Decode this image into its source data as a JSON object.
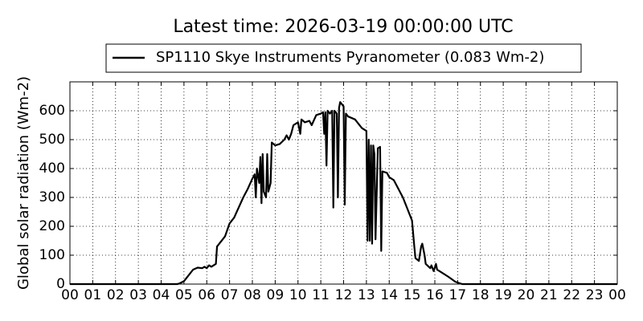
{
  "chart_data": {
    "type": "line",
    "title": "Latest time: 2026-03-19 00:00:00 UTC",
    "ylabel": "Global solar radiation (Wm-2)",
    "xlim": [
      0,
      24
    ],
    "ylim": [
      0,
      700
    ],
    "xticks": [
      {
        "value": 0,
        "label": "00"
      },
      {
        "value": 1,
        "label": "01"
      },
      {
        "value": 2,
        "label": "02"
      },
      {
        "value": 3,
        "label": "03"
      },
      {
        "value": 4,
        "label": "04"
      },
      {
        "value": 5,
        "label": "05"
      },
      {
        "value": 6,
        "label": "06"
      },
      {
        "value": 7,
        "label": "07"
      },
      {
        "value": 8,
        "label": "08"
      },
      {
        "value": 9,
        "label": "09"
      },
      {
        "value": 10,
        "label": "10"
      },
      {
        "value": 11,
        "label": "11"
      },
      {
        "value": 12,
        "label": "12"
      },
      {
        "value": 13,
        "label": "13"
      },
      {
        "value": 14,
        "label": "14"
      },
      {
        "value": 15,
        "label": "15"
      },
      {
        "value": 16,
        "label": "16"
      },
      {
        "value": 17,
        "label": "17"
      },
      {
        "value": 18,
        "label": "18"
      },
      {
        "value": 19,
        "label": "19"
      },
      {
        "value": 20,
        "label": "20"
      },
      {
        "value": 21,
        "label": "21"
      },
      {
        "value": 22,
        "label": "22"
      },
      {
        "value": 23,
        "label": "23"
      },
      {
        "value": 24,
        "label": "00"
      }
    ],
    "yticks": [
      0,
      100,
      200,
      300,
      400,
      500,
      600
    ],
    "grid": true,
    "series": [
      {
        "name": "SP1110 Skye Instruments Pyranometer (0.083 Wm-2)",
        "color": "#000000",
        "x": [
          0,
          4.7,
          4.8,
          5.0,
          5.2,
          5.4,
          5.6,
          5.8,
          5.9,
          6.0,
          6.1,
          6.2,
          6.4,
          6.45,
          6.6,
          6.8,
          7.0,
          7.2,
          7.4,
          7.6,
          7.8,
          8.0,
          8.1,
          8.15,
          8.2,
          8.3,
          8.35,
          8.4,
          8.45,
          8.5,
          8.6,
          8.65,
          8.7,
          8.8,
          8.85,
          9.0,
          9.2,
          9.4,
          9.5,
          9.6,
          9.7,
          9.8,
          10.0,
          10.1,
          10.15,
          10.3,
          10.5,
          10.6,
          10.8,
          11.0,
          11.1,
          11.15,
          11.2,
          11.25,
          11.3,
          11.4,
          11.5,
          11.55,
          11.6,
          11.7,
          11.75,
          11.8,
          11.85,
          12.0,
          12.05,
          12.1,
          12.2,
          12.5,
          12.8,
          13.0,
          13.05,
          13.1,
          13.15,
          13.2,
          13.25,
          13.3,
          13.35,
          13.4,
          13.5,
          13.6,
          13.65,
          13.7,
          13.9,
          14.0,
          14.2,
          14.4,
          14.6,
          14.8,
          15.0,
          15.1,
          15.15,
          15.3,
          15.4,
          15.45,
          15.55,
          15.6,
          15.8,
          15.85,
          15.95,
          16.05,
          16.1,
          16.3,
          16.6,
          16.9,
          17.2,
          24
        ],
        "values": [
          0,
          0,
          2,
          10,
          30,
          50,
          57,
          55,
          60,
          55,
          65,
          60,
          70,
          130,
          145,
          165,
          210,
          230,
          265,
          300,
          330,
          365,
          380,
          300,
          400,
          350,
          440,
          280,
          450,
          320,
          300,
          450,
          320,
          350,
          490,
          480,
          485,
          500,
          515,
          500,
          520,
          550,
          560,
          520,
          570,
          560,
          565,
          550,
          585,
          590,
          595,
          520,
          595,
          410,
          600,
          590,
          600,
          265,
          600,
          590,
          300,
          610,
          630,
          615,
          275,
          590,
          580,
          570,
          540,
          530,
          150,
          500,
          150,
          480,
          140,
          480,
          450,
          155,
          470,
          475,
          115,
          390,
          385,
          370,
          360,
          330,
          300,
          260,
          220,
          130,
          90,
          80,
          130,
          140,
          100,
          70,
          55,
          65,
          45,
          70,
          50,
          40,
          25,
          8,
          0,
          0
        ]
      }
    ]
  }
}
